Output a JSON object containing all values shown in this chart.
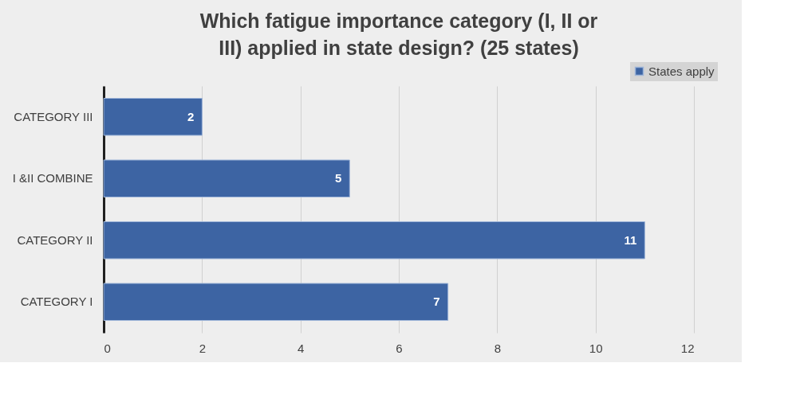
{
  "chart_data": {
    "type": "bar",
    "orientation": "horizontal",
    "title": "Which fatigue importance category (I, II or III) applied in state design? (25 states)",
    "categories": [
      "CATEGORY III",
      "I &II COMBINE",
      "CATEGORY II",
      "CATEGORY I"
    ],
    "series": [
      {
        "name": "States apply",
        "color": "#3d64a3",
        "values": [
          2,
          5,
          11,
          7
        ]
      }
    ],
    "xlim": [
      0,
      12
    ],
    "xticks": [
      0,
      2,
      4,
      6,
      8,
      10,
      12
    ],
    "grid": "x",
    "legend": "top right",
    "data_labels": true
  }
}
